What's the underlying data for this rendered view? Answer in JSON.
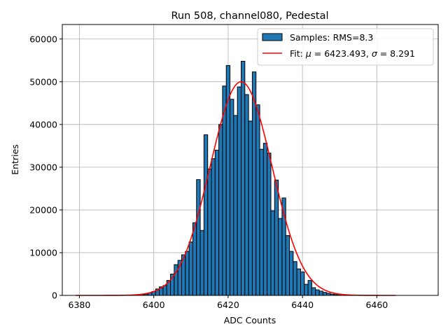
{
  "chart_data": {
    "type": "bar",
    "title": "Run 508, channel080, Pedestal",
    "xlabel": "ADC Counts",
    "ylabel": "Entries",
    "xlim": [
      6375.4,
      6476.5
    ],
    "ylim": [
      0,
      63400
    ],
    "grid": true,
    "legend_placement": "top-right",
    "xticks": [
      6380,
      6400,
      6420,
      6440,
      6460
    ],
    "yticks": [
      0,
      10000,
      20000,
      30000,
      40000,
      50000,
      60000
    ],
    "bin_width": 1,
    "bins": [
      6396,
      6397,
      6398,
      6399,
      6400,
      6401,
      6402,
      6403,
      6404,
      6405,
      6406,
      6407,
      6408,
      6409,
      6410,
      6411,
      6412,
      6413,
      6414,
      6415,
      6416,
      6417,
      6418,
      6419,
      6420,
      6421,
      6422,
      6423,
      6424,
      6425,
      6426,
      6427,
      6428,
      6429,
      6430,
      6431,
      6432,
      6433,
      6434,
      6435,
      6436,
      6437,
      6438,
      6439,
      6440,
      6441,
      6442,
      6443,
      6444,
      6445,
      6446,
      6447,
      6448,
      6449,
      6450
    ],
    "values": [
      100,
      200,
      300,
      600,
      900,
      1500,
      2000,
      2300,
      3500,
      5000,
      7200,
      8200,
      9500,
      10300,
      12500,
      17000,
      27100,
      15200,
      37600,
      29600,
      32000,
      34000,
      40000,
      49000,
      53800,
      45900,
      42100,
      48800,
      54800,
      47000,
      40800,
      52300,
      44600,
      34200,
      35600,
      33300,
      19800,
      27000,
      18000,
      22800,
      14000,
      10300,
      7900,
      6200,
      5500,
      2600,
      3500,
      1800,
      1300,
      1000,
      700,
      500,
      300,
      200,
      100
    ],
    "series": [
      {
        "name": "Samples: RMS=8.3",
        "kind": "histogram",
        "color": "#1f77b4"
      },
      {
        "name_prefix": "Fit: ",
        "mu_symbol": "μ",
        "mu_text": " = 6423.493, ",
        "sigma_symbol": "σ",
        "sigma_text": " = 8.291",
        "kind": "gaussian",
        "mu": 6423.493,
        "sigma": 8.291,
        "amplitude": 50000,
        "x_range": [
          6379,
          6465
        ],
        "color": "#ff0000"
      }
    ]
  }
}
